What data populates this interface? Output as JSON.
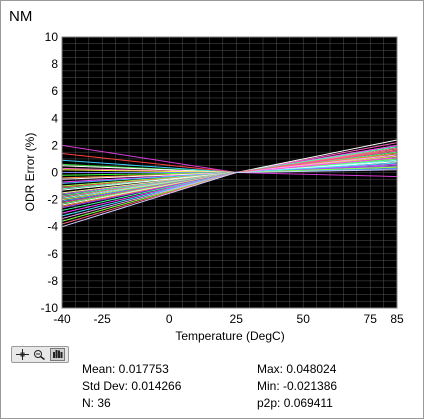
{
  "window": {
    "title": "NM"
  },
  "toolbar": {
    "tools": [
      "cursor-move-icon",
      "zoom-icon",
      "pan-hand-icon"
    ]
  },
  "stats": {
    "mean": "Mean: 0.017753",
    "std_dev": "Std Dev: 0.014266",
    "n": "N: 36",
    "max": "Max: 0.048024",
    "min": "Min: -0.021386",
    "p2p": "p2p: 0.069411"
  },
  "chart_data": {
    "type": "line",
    "xlabel": "Temperature (DegC)",
    "ylabel": "ODR Error (%)",
    "xlim": [
      -40,
      85
    ],
    "ylim": [
      -10,
      10
    ],
    "x_ticks": [
      -40,
      -25,
      0,
      25,
      50,
      75,
      85
    ],
    "y_ticks": [
      10,
      8,
      6,
      4,
      2,
      0,
      -2,
      -4,
      -6,
      -8,
      -10
    ],
    "grid": true,
    "background": "#000000",
    "grid_color": "#555555",
    "x": [
      -40,
      25,
      85
    ],
    "series": [
      {
        "values": [
          2.0,
          0.0,
          -0.3
        ],
        "color": "#d63cd6"
      },
      {
        "values": [
          1.4,
          0.0,
          0.3
        ],
        "color": "#ff4040"
      },
      {
        "values": [
          0.9,
          0.0,
          0.8
        ],
        "color": "#3ad0ff"
      },
      {
        "values": [
          0.6,
          0.0,
          1.6
        ],
        "color": "#40e040"
      },
      {
        "values": [
          0.5,
          0.0,
          1.9
        ],
        "color": "#ffffff"
      },
      {
        "values": [
          0.3,
          0.0,
          2.2
        ],
        "color": "#ff60c0"
      },
      {
        "values": [
          0.2,
          0.0,
          0.5
        ],
        "color": "#ffff40"
      },
      {
        "values": [
          0.0,
          0.0,
          1.2
        ],
        "color": "#8080ff"
      },
      {
        "values": [
          -0.2,
          0.0,
          0.9
        ],
        "color": "#40ff40"
      },
      {
        "values": [
          -0.4,
          0.0,
          1.4
        ],
        "color": "#ff9040"
      },
      {
        "values": [
          -0.5,
          0.0,
          0.4
        ],
        "color": "#ffffff"
      },
      {
        "values": [
          -0.7,
          0.0,
          2.0
        ],
        "color": "#ff40ff"
      },
      {
        "values": [
          -0.8,
          0.0,
          1.0
        ],
        "color": "#40c0ff"
      },
      {
        "values": [
          -1.0,
          0.0,
          1.7
        ],
        "color": "#a0ff40"
      },
      {
        "values": [
          -1.1,
          0.0,
          0.7
        ],
        "color": "#ff6060"
      },
      {
        "values": [
          -1.2,
          0.0,
          1.3
        ],
        "color": "#60ffc0"
      },
      {
        "values": [
          -1.3,
          0.0,
          2.4
        ],
        "color": "#ffffff"
      },
      {
        "values": [
          -1.5,
          0.0,
          1.1
        ],
        "color": "#ffff80"
      },
      {
        "values": [
          -1.6,
          0.0,
          0.6
        ],
        "color": "#c060ff"
      },
      {
        "values": [
          -1.7,
          0.0,
          1.5
        ],
        "color": "#40ff80"
      },
      {
        "values": [
          -1.8,
          0.0,
          1.8
        ],
        "color": "#ff80a0"
      },
      {
        "values": [
          -1.9,
          0.0,
          0.9
        ],
        "color": "#80ffff"
      },
      {
        "values": [
          -2.0,
          0.0,
          1.2
        ],
        "color": "#e0e040"
      },
      {
        "values": [
          -2.1,
          0.0,
          0.3
        ],
        "color": "#40a0ff"
      },
      {
        "values": [
          -2.2,
          0.0,
          1.6
        ],
        "color": "#ff40a0"
      },
      {
        "values": [
          -2.3,
          0.0,
          1.0
        ],
        "color": "#60ff60"
      },
      {
        "values": [
          -2.4,
          0.0,
          0.8
        ],
        "color": "#ffffff"
      },
      {
        "values": [
          -2.5,
          0.0,
          1.4
        ],
        "color": "#ff8040"
      },
      {
        "values": [
          -2.6,
          0.0,
          0.5
        ],
        "color": "#a040ff"
      },
      {
        "values": [
          -2.8,
          0.0,
          1.9
        ],
        "color": "#40ffa0"
      },
      {
        "values": [
          -3.0,
          0.0,
          1.1
        ],
        "color": "#ff40ff"
      },
      {
        "values": [
          -3.2,
          0.0,
          0.7
        ],
        "color": "#40e0ff"
      },
      {
        "values": [
          -3.4,
          0.0,
          1.3
        ],
        "color": "#ffa0ff"
      },
      {
        "values": [
          -3.6,
          0.0,
          0.4
        ],
        "color": "#80ff40"
      },
      {
        "values": [
          -3.8,
          0.0,
          1.7
        ],
        "color": "#ff6080"
      },
      {
        "values": [
          -4.0,
          0.0,
          0.2
        ],
        "color": "#d0d0ff"
      }
    ]
  }
}
